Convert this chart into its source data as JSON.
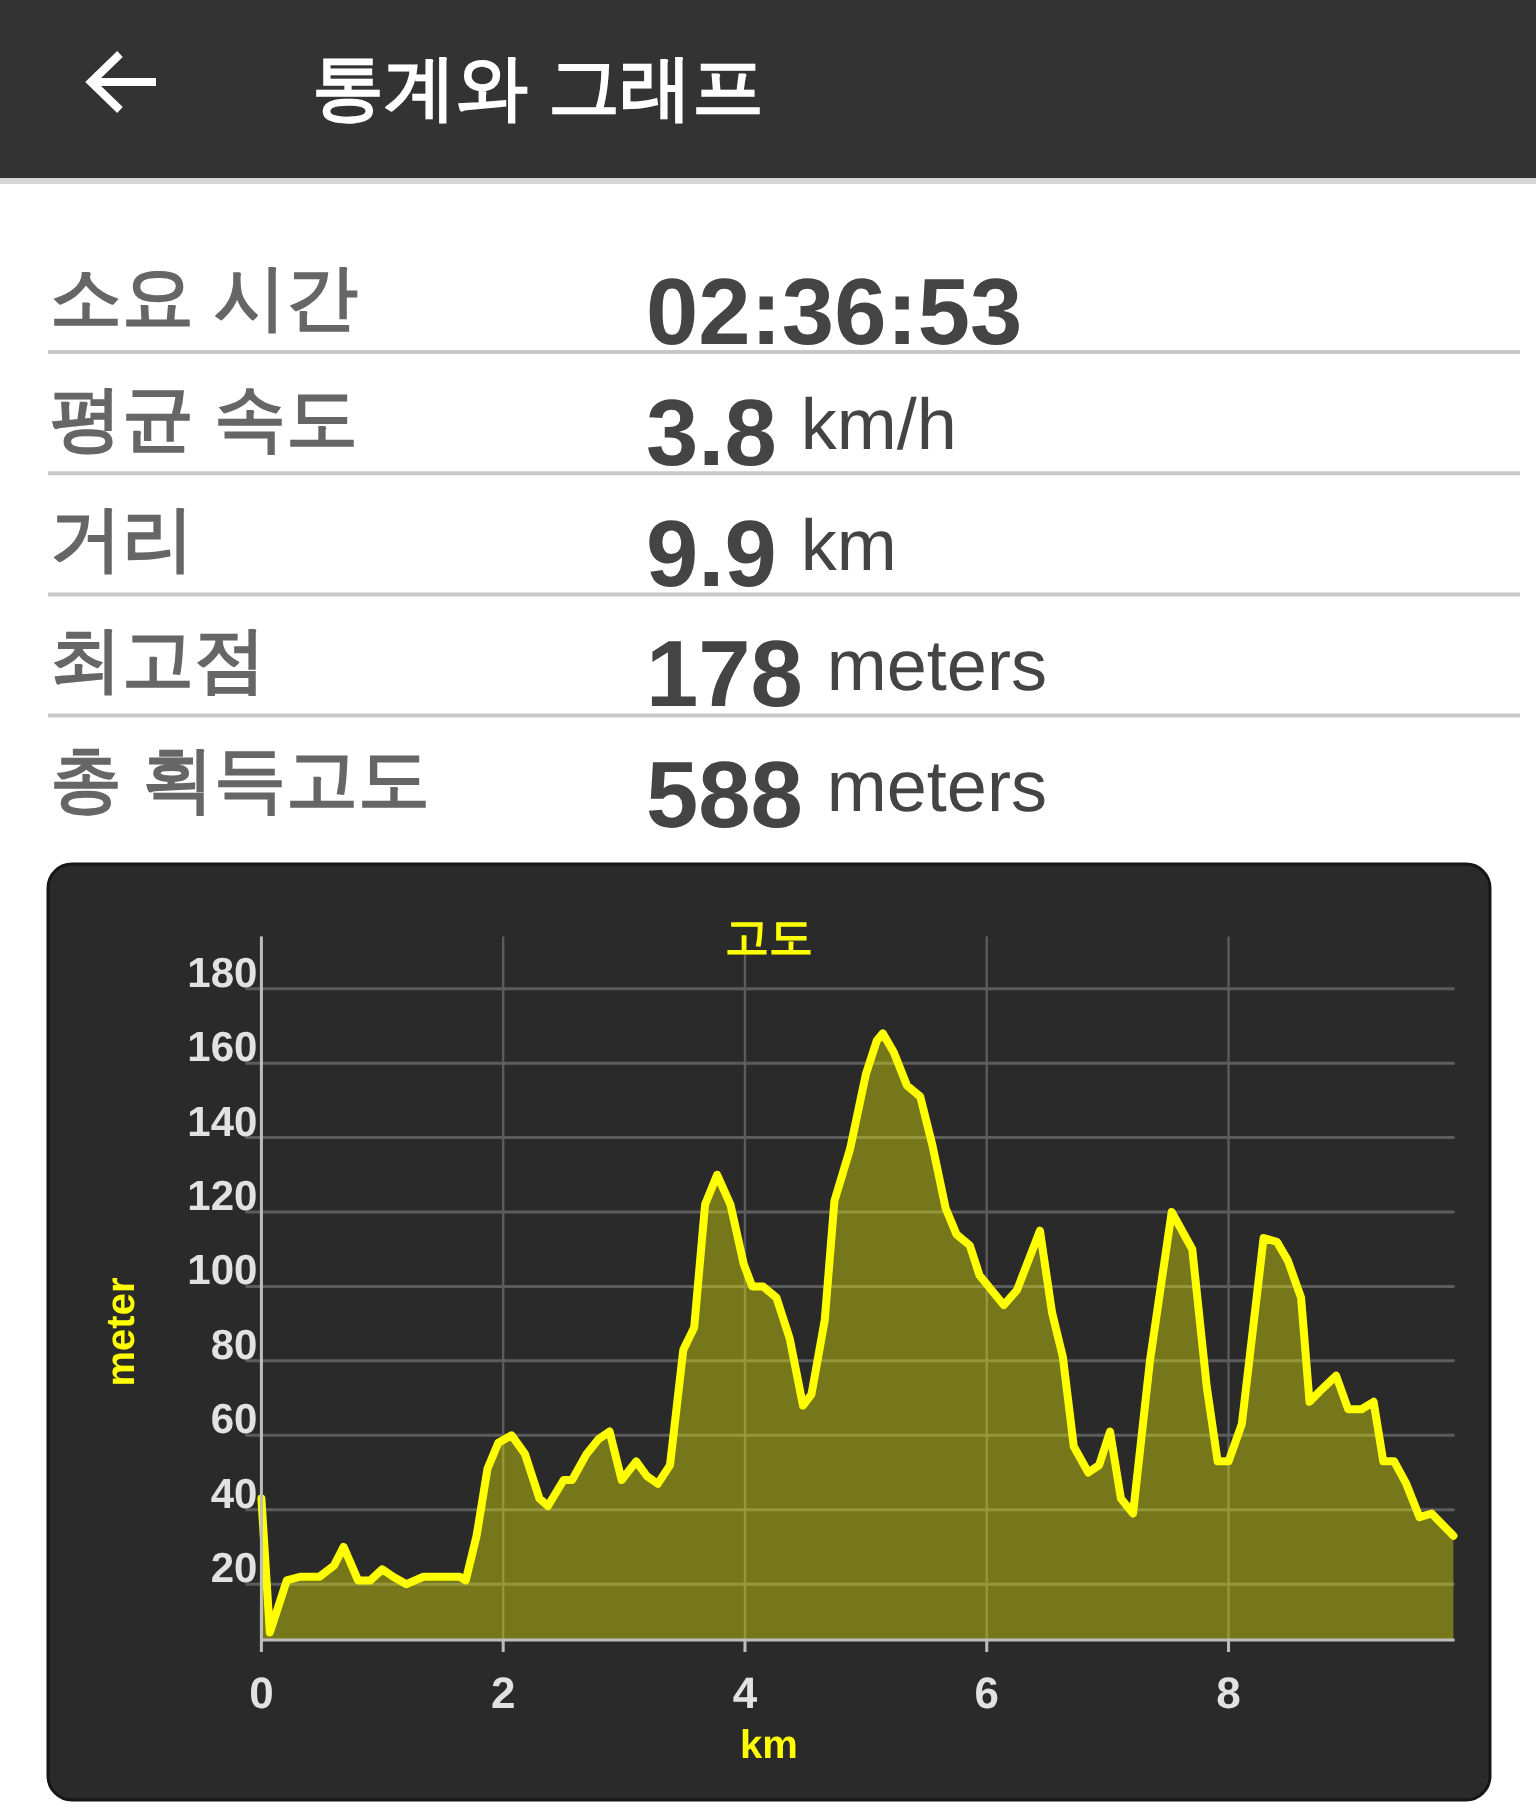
{
  "chart_data": [
    {
      "type": "other",
      "title": "통계와 그래프",
      "annotations": [
        "소요 시간",
        "02:36:53",
        "평균 속도",
        "3.8 km/h",
        "거리",
        "9.9 km",
        "최고점",
        "178 meters",
        "총 획득고도",
        "588 meters"
      ]
    },
    {
      "type": "area",
      "title": "고도",
      "xlabel": "km",
      "ylabel": "meter",
      "grid": true,
      "xlim": [
        0,
        9.87
      ],
      "ylim": [
        5,
        194
      ],
      "xticks": [
        0,
        2,
        4,
        6,
        8
      ],
      "yticks": [
        20,
        40,
        60,
        80,
        100,
        120,
        140,
        160,
        180
      ],
      "x": [
        0,
        0.07,
        0.21,
        0.32,
        0.48,
        0.6,
        0.68,
        0.8,
        0.9,
        1.0,
        1.09,
        1.2,
        1.34,
        1.64,
        1.69,
        1.78,
        1.87,
        1.96,
        2.07,
        2.18,
        2.3,
        2.37,
        2.5,
        2.57,
        2.69,
        2.79,
        2.88,
        2.98,
        3.1,
        3.19,
        3.28,
        3.38,
        3.49,
        3.58,
        3.67,
        3.77,
        3.88,
        3.99,
        4.06,
        4.15,
        4.26,
        4.37,
        4.48,
        4.55,
        4.66,
        4.74,
        4.87,
        5.0,
        5.09,
        5.14,
        5.23,
        5.34,
        5.45,
        5.55,
        5.66,
        5.75,
        5.86,
        5.94,
        6.14,
        6.25,
        6.44,
        6.54,
        6.63,
        6.72,
        6.84,
        6.93,
        7.02,
        7.11,
        7.21,
        7.35,
        7.53,
        7.7,
        7.82,
        7.91,
        8.0,
        8.11,
        8.29,
        8.4,
        8.49,
        8.6,
        8.67,
        8.76,
        8.89,
        8.99,
        9.1,
        9.2,
        9.28,
        9.37,
        9.47,
        9.58,
        9.68,
        9.86
      ],
      "series": [
        {
          "color": "#ffff00",
          "values": [
            43,
            7,
            21,
            22,
            22,
            25,
            30,
            21,
            21,
            24,
            22,
            20,
            22,
            22,
            21,
            33,
            51,
            58,
            60,
            55,
            43,
            41,
            48,
            48,
            55,
            59,
            61,
            48,
            53,
            49,
            47,
            52,
            83,
            89,
            122,
            130,
            122,
            106,
            100,
            100,
            97,
            86,
            68,
            71,
            91,
            123,
            137,
            157,
            166,
            168,
            163,
            154,
            151,
            138,
            121,
            114,
            111,
            103,
            95,
            99,
            115,
            93,
            81,
            57,
            50,
            52,
            61,
            43,
            39,
            80,
            120,
            110,
            73,
            53,
            53,
            63,
            113,
            112,
            107,
            97,
            69,
            72,
            76,
            67,
            67,
            69,
            53,
            53,
            47,
            38,
            39,
            33
          ]
        }
      ]
    }
  ]
}
